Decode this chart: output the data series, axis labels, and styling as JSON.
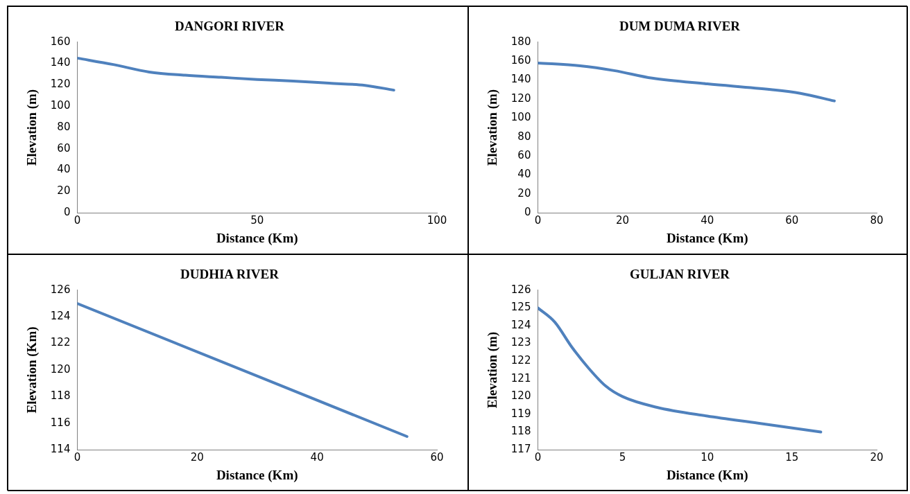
{
  "chart_data": [
    {
      "type": "line",
      "title": "DANGORI RIVER",
      "xlabel": "Distance (Km)",
      "ylabel": "Elevation (m)",
      "xlim": [
        0,
        100
      ],
      "xticks": [
        0,
        50,
        100
      ],
      "ylim": [
        0,
        160
      ],
      "yticks": [
        0,
        20,
        40,
        60,
        80,
        100,
        120,
        140,
        160
      ],
      "grid": false,
      "legend": false,
      "marker": "none",
      "series": [
        {
          "color": "#4f81bd",
          "x": [
            0,
            10,
            20,
            30,
            40,
            50,
            60,
            70,
            80,
            88
          ],
          "values": [
            145,
            139,
            132,
            129,
            127,
            125,
            123.5,
            121.5,
            119.5,
            115
          ]
        }
      ]
    },
    {
      "type": "line",
      "title": "DUM DUMA RIVER",
      "xlabel": "Distance (Km)",
      "ylabel": "Elevation (m)",
      "xlim": [
        0,
        80
      ],
      "xticks": [
        0,
        20,
        40,
        60,
        80
      ],
      "ylim": [
        0,
        180
      ],
      "yticks": [
        0,
        20,
        40,
        60,
        80,
        100,
        120,
        140,
        160,
        180
      ],
      "grid": false,
      "legend": false,
      "marker": "none",
      "series": [
        {
          "color": "#4f81bd",
          "x": [
            0,
            10,
            18,
            27,
            40,
            55,
            62,
            70
          ],
          "values": [
            158,
            155,
            150,
            142,
            136,
            130,
            126,
            118
          ]
        }
      ]
    },
    {
      "type": "line",
      "title": "DUDHIA RIVER",
      "xlabel": "Distance (Km)",
      "ylabel": "Elevation (Km)",
      "xlim": [
        0,
        60
      ],
      "xticks": [
        0,
        20,
        40,
        60
      ],
      "ylim": [
        114,
        126
      ],
      "yticks": [
        114,
        116,
        118,
        120,
        122,
        124,
        126
      ],
      "grid": false,
      "legend": false,
      "marker": "none",
      "series": [
        {
          "color": "#4f81bd",
          "x": [
            0,
            55
          ],
          "values": [
            125,
            115
          ]
        }
      ]
    },
    {
      "type": "line",
      "title": "GULJAN RIVER",
      "xlabel": "Distance (Km)",
      "ylabel": "Elevation (m)",
      "xlim": [
        0,
        20
      ],
      "xticks": [
        0,
        5,
        10,
        15,
        20
      ],
      "ylim": [
        117,
        126
      ],
      "yticks": [
        117,
        118,
        119,
        120,
        121,
        122,
        123,
        124,
        125,
        126
      ],
      "grid": false,
      "legend": false,
      "marker": "none",
      "series": [
        {
          "color": "#4f81bd",
          "x": [
            0,
            1,
            2,
            3,
            4,
            5,
            7,
            10,
            13,
            16.7
          ],
          "values": [
            125,
            124.2,
            122.8,
            121.6,
            120.6,
            120,
            119.4,
            118.9,
            118.5,
            118
          ]
        }
      ]
    }
  ]
}
